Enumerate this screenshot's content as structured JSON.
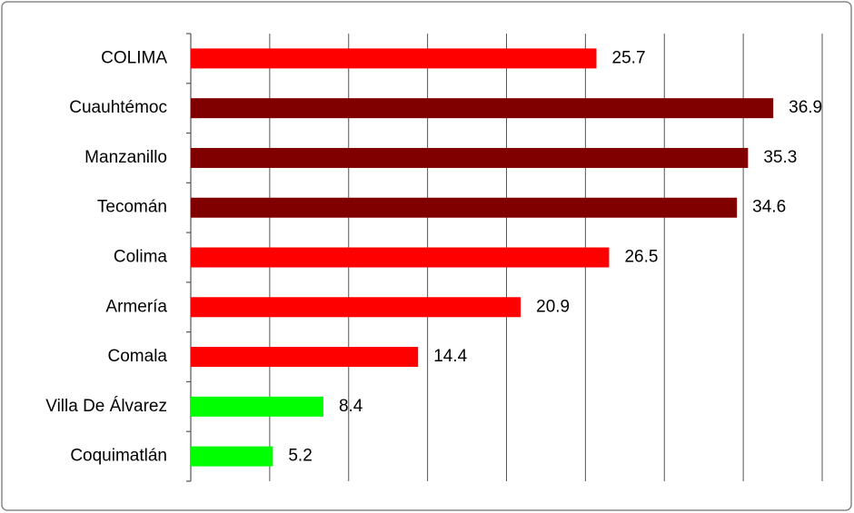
{
  "chart_data": {
    "type": "bar",
    "orientation": "horizontal",
    "categories": [
      "COLIMA",
      "Cuauhtémoc",
      "Manzanillo",
      "Tecomán",
      "Colima",
      "Armería",
      "Comala",
      "Villa De Álvarez",
      "Coquimatlán"
    ],
    "values": [
      25.7,
      36.9,
      35.3,
      34.6,
      26.5,
      20.9,
      14.4,
      8.4,
      5.2
    ],
    "colors": [
      "#ff0000",
      "#800000",
      "#800000",
      "#800000",
      "#ff0000",
      "#ff0000",
      "#ff0000",
      "#00ff00",
      "#00ff00"
    ],
    "xlim": [
      0,
      40
    ],
    "xticks": [
      0,
      5,
      10,
      15,
      20,
      25,
      30,
      35,
      40
    ],
    "grid": true
  }
}
